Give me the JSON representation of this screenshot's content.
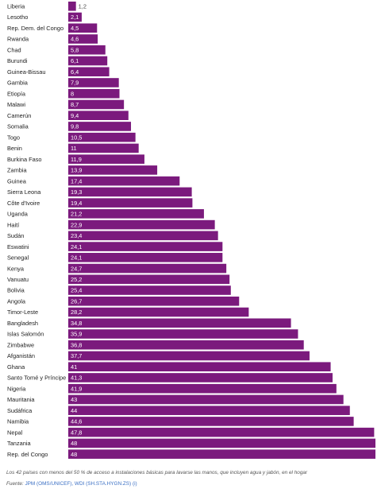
{
  "chart_data": {
    "type": "bar",
    "orientation": "horizontal",
    "categories": [
      "Liberia",
      "Lesotho",
      "Rep. Dem. del Congo",
      "Rwanda",
      "Chad",
      "Burundi",
      "Guinea-Bissau",
      "Gambia",
      "Etiopía",
      "Malawi",
      "Camerún",
      "Somalia",
      "Togo",
      "Benin",
      "Burkina Faso",
      "Zambia",
      "Guinea",
      "Sierra Leona",
      "Côte d'Ivoire",
      "Uganda",
      "Haití",
      "Sudán",
      "Eswatini",
      "Senegal",
      "Kenya",
      "Vanuatu",
      "Bolivia",
      "Angola",
      "Timor-Leste",
      "Bangladesh",
      "Islas Salomón",
      "Zimbabwe",
      "Afganistán",
      "Ghana",
      "Santo Tomé y Príncipe",
      "Nigeria",
      "Mauritania",
      "Sudáfrica",
      "Namibia",
      "Nepal",
      "Tanzania",
      "Rep. del Congo"
    ],
    "values": [
      1.2,
      2.1,
      4.5,
      4.6,
      5.8,
      6.1,
      6.4,
      7.9,
      8,
      8.7,
      9.4,
      9.8,
      10.5,
      11,
      11.9,
      13.9,
      17.4,
      19.3,
      19.4,
      21.2,
      22.9,
      23.4,
      24.1,
      24.1,
      24.7,
      25.2,
      25.4,
      26.7,
      28.2,
      34.8,
      35.9,
      36.8,
      37.7,
      41,
      41.3,
      41.9,
      43,
      44,
      44.6,
      47.8,
      48,
      48
    ],
    "labels": [
      "1,2",
      "2,1",
      "4,5",
      "4,6",
      "5,8",
      "6,1",
      "6,4",
      "7,9",
      "8",
      "8,7",
      "9,4",
      "9,8",
      "10,5",
      "11",
      "11,9",
      "13,9",
      "17,4",
      "19,3",
      "19,4",
      "21,2",
      "22,9",
      "23,4",
      "24,1",
      "24,1",
      "24,7",
      "25,2",
      "25,4",
      "26,7",
      "28,2",
      "34,8",
      "35,9",
      "36,8",
      "37,7",
      "41",
      "41,3",
      "41,9",
      "43",
      "44",
      "44,6",
      "47,8",
      "48",
      "48"
    ],
    "xlim": [
      0,
      48
    ],
    "bar_color": "#7b1a7d",
    "label_inside_color": "#ffffff",
    "label_outside_color": "#444444",
    "grid": false,
    "legend": "none"
  },
  "caption": "Los 42 países con menos del 50 % de acceso a instalaciones básicas para lavarse las manos, que incluyen agua y jabón, en el hogar",
  "source": {
    "prefix": "Fuente: ",
    "link_text": "JPM (OMS/UNICEF), WDI (SH.STA.HYGN.ZS) (i)"
  }
}
